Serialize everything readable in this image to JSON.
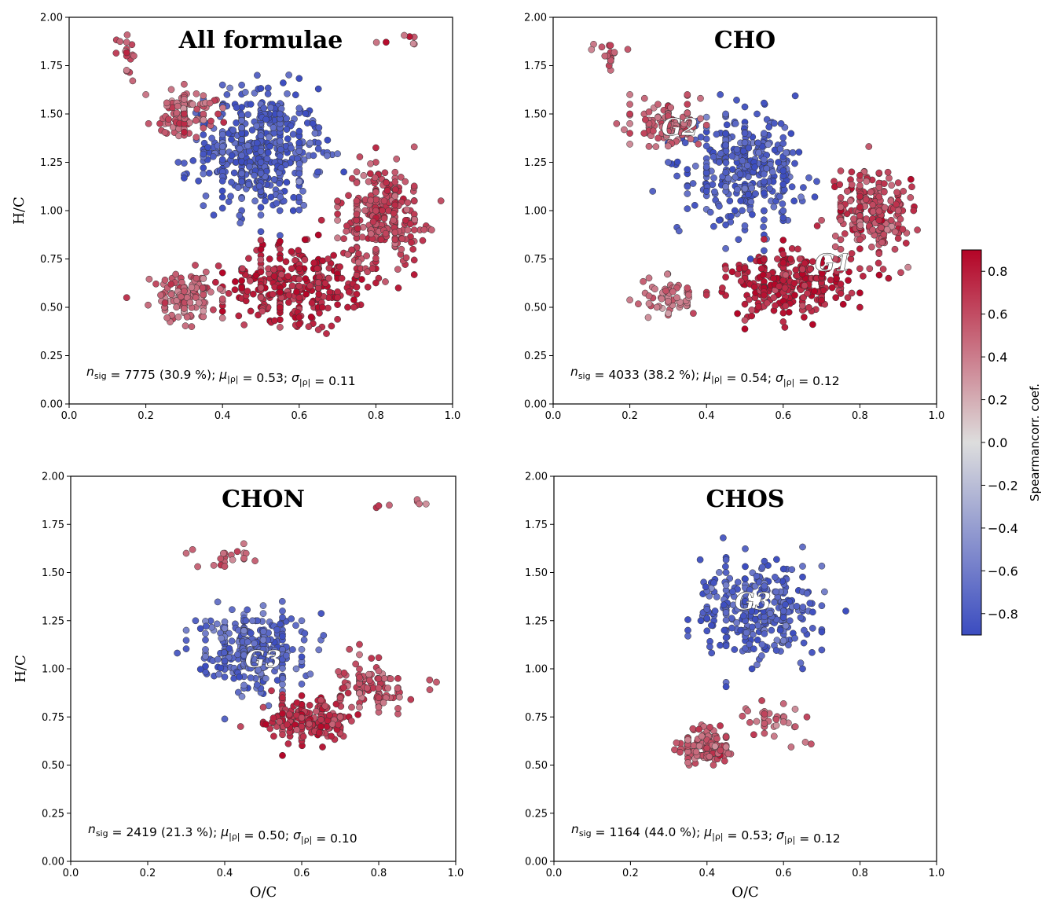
{
  "chart_data": [
    {
      "type": "scatter",
      "panel": "All formulae",
      "title": "All formulae",
      "xlabel": "",
      "ylabel": "H/C",
      "xlim": [
        0.0,
        1.0
      ],
      "ylim": [
        0.0,
        2.0
      ],
      "xticks": [
        "0.0",
        "0.2",
        "0.4",
        "0.6",
        "0.8",
        "1.0"
      ],
      "yticks": [
        "0.00",
        "0.25",
        "0.50",
        "0.75",
        "1.00",
        "1.25",
        "1.50",
        "1.75",
        "2.00"
      ],
      "stats": {
        "n_value": "7775 (30.9 %)",
        "mu_value": "0.53",
        "sigma_value": "0.11"
      },
      "group_labels": [],
      "clusters": [
        {
          "center": [
            0.5,
            1.32
          ],
          "spread": [
            0.13,
            0.26
          ],
          "rho": -0.8,
          "count": 520
        },
        {
          "center": [
            0.6,
            0.62
          ],
          "spread": [
            0.15,
            0.16
          ],
          "rho": 0.78,
          "count": 330
        },
        {
          "center": [
            0.82,
            0.98
          ],
          "spread": [
            0.09,
            0.2
          ],
          "rho": 0.62,
          "count": 300
        },
        {
          "center": [
            0.3,
            0.55
          ],
          "spread": [
            0.07,
            0.1
          ],
          "rho": 0.5,
          "count": 140
        },
        {
          "center": [
            0.3,
            1.5
          ],
          "spread": [
            0.07,
            0.1
          ],
          "rho": 0.52,
          "count": 100
        },
        {
          "center": [
            0.15,
            1.82
          ],
          "spread": [
            0.03,
            0.08
          ],
          "rho": 0.55,
          "count": 18
        },
        {
          "center": [
            0.88,
            1.87
          ],
          "spread": [
            0.06,
            0.03
          ],
          "rho": 0.6,
          "count": 7
        }
      ]
    },
    {
      "type": "scatter",
      "panel": "CHO",
      "title": "CHO",
      "xlabel": "",
      "ylabel": "",
      "xlim": [
        0.0,
        1.0
      ],
      "ylim": [
        0.0,
        2.0
      ],
      "xticks": [
        "0.0",
        "0.2",
        "0.4",
        "0.6",
        "0.8",
        "1.0"
      ],
      "yticks": [
        "0.00",
        "0.25",
        "0.50",
        "0.75",
        "1.00",
        "1.25",
        "1.50",
        "1.75",
        "2.00"
      ],
      "stats": {
        "n_value": "4033 (38.2 %)",
        "mu_value": "0.54",
        "sigma_value": "0.12"
      },
      "group_labels": [
        {
          "text": "G2",
          "x": 0.33,
          "y": 1.43
        },
        {
          "text": "G1",
          "x": 0.73,
          "y": 0.73
        }
      ],
      "clusters": [
        {
          "center": [
            0.5,
            1.22
          ],
          "spread": [
            0.12,
            0.22
          ],
          "rho": -0.8,
          "count": 380
        },
        {
          "center": [
            0.62,
            0.62
          ],
          "spread": [
            0.13,
            0.14
          ],
          "rho": 0.78,
          "count": 300
        },
        {
          "center": [
            0.83,
            1.0
          ],
          "spread": [
            0.08,
            0.18
          ],
          "rho": 0.62,
          "count": 260
        },
        {
          "center": [
            0.3,
            1.45
          ],
          "spread": [
            0.07,
            0.1
          ],
          "rho": 0.5,
          "count": 120
        },
        {
          "center": [
            0.3,
            0.55
          ],
          "spread": [
            0.06,
            0.09
          ],
          "rho": 0.45,
          "count": 60
        },
        {
          "center": [
            0.15,
            1.82
          ],
          "spread": [
            0.03,
            0.08
          ],
          "rho": 0.55,
          "count": 18
        }
      ]
    },
    {
      "type": "scatter",
      "panel": "CHON",
      "title": "CHON",
      "xlabel": "O/C",
      "ylabel": "H/C",
      "xlim": [
        0.0,
        1.0
      ],
      "ylim": [
        0.0,
        2.0
      ],
      "xticks": [
        "0.0",
        "0.2",
        "0.4",
        "0.6",
        "0.8",
        "1.0"
      ],
      "yticks": [
        "0.00",
        "0.25",
        "0.50",
        "0.75",
        "1.00",
        "1.25",
        "1.50",
        "1.75",
        "2.00"
      ],
      "stats": {
        "n_value": "2419 (21.3 %)",
        "mu_value": "0.50",
        "sigma_value": "0.10"
      },
      "group_labels": [
        {
          "text": "G3",
          "x": 0.5,
          "y": 1.05
        }
      ],
      "clusters": [
        {
          "center": [
            0.47,
            1.1
          ],
          "spread": [
            0.11,
            0.17
          ],
          "rho": -0.72,
          "count": 320
        },
        {
          "center": [
            0.62,
            0.74
          ],
          "spread": [
            0.1,
            0.11
          ],
          "rho": 0.7,
          "count": 200
        },
        {
          "center": [
            0.78,
            0.9
          ],
          "spread": [
            0.08,
            0.1
          ],
          "rho": 0.58,
          "count": 100
        },
        {
          "center": [
            0.4,
            1.58
          ],
          "spread": [
            0.07,
            0.05
          ],
          "rho": 0.5,
          "count": 20
        },
        {
          "center": [
            0.87,
            1.86
          ],
          "spread": [
            0.06,
            0.03
          ],
          "rho": 0.6,
          "count": 7
        }
      ]
    },
    {
      "type": "scatter",
      "panel": "CHOS",
      "title": "CHOS",
      "xlabel": "O/C",
      "ylabel": "",
      "xlim": [
        0.0,
        1.0
      ],
      "ylim": [
        0.0,
        2.0
      ],
      "xticks": [
        "0.0",
        "0.2",
        "0.4",
        "0.6",
        "0.8",
        "1.0"
      ],
      "yticks": [
        "0.00",
        "0.25",
        "0.50",
        "0.75",
        "1.00",
        "1.25",
        "1.50",
        "1.75",
        "2.00"
      ],
      "stats": {
        "n_value": "1164 (44.0 %)",
        "mu_value": "0.53",
        "sigma_value": "0.12"
      },
      "group_labels": [
        {
          "text": "G3",
          "x": 0.52,
          "y": 1.35
        }
      ],
      "clusters": [
        {
          "center": [
            0.53,
            1.3
          ],
          "spread": [
            0.12,
            0.2
          ],
          "rho": -0.78,
          "count": 330
        },
        {
          "center": [
            0.4,
            0.6
          ],
          "spread": [
            0.05,
            0.07
          ],
          "rho": 0.55,
          "count": 150
        },
        {
          "center": [
            0.57,
            0.73
          ],
          "spread": [
            0.07,
            0.08
          ],
          "rho": 0.5,
          "count": 40
        }
      ]
    }
  ],
  "colorbar": {
    "label": "Spearmancorr. coef.",
    "range": [
      -0.9,
      0.9
    ],
    "ticks": [
      "0.8",
      "0.6",
      "0.4",
      "0.2",
      "0.0",
      "−0.2",
      "−0.4",
      "−0.6",
      "−0.8"
    ],
    "tick_values": [
      0.8,
      0.6,
      0.4,
      0.2,
      0.0,
      -0.2,
      -0.4,
      -0.6,
      -0.8
    ],
    "colormap": "coolwarm",
    "colors": {
      "low": "#3b4cc0",
      "mid": "#dddddd",
      "high": "#b40426"
    }
  },
  "stat_symbols": {
    "n_main": "n",
    "n_sub": "sig",
    "mu": "μ",
    "sigma": "σ",
    "abs_rho": "|ρ|"
  }
}
